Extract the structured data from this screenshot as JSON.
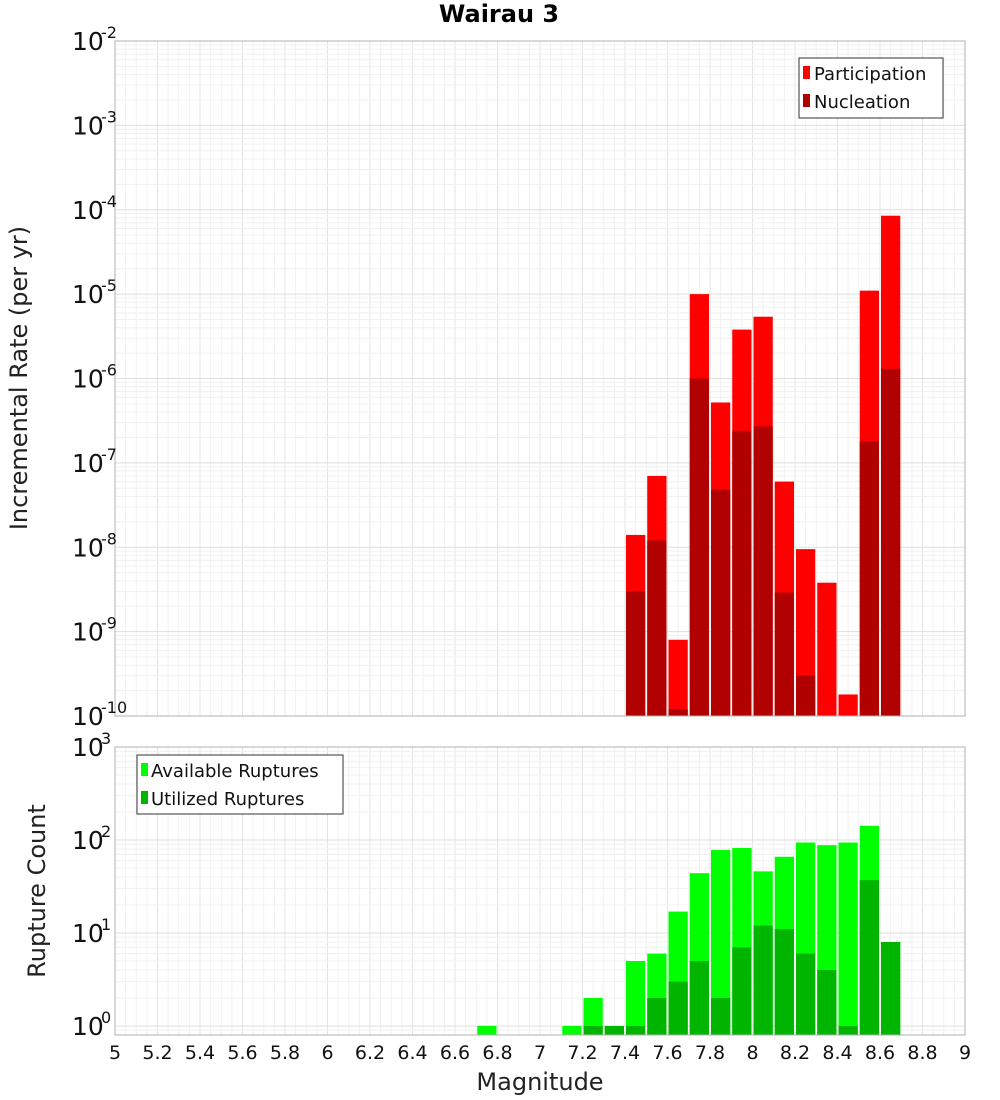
{
  "chart_data": [
    {
      "type": "bar",
      "title": "Wairau 3",
      "xlabel": "Magnitude",
      "ylabel": "Incremental Rate (per yr)",
      "yscale": "log",
      "xlim": [
        5,
        9
      ],
      "ylim": [
        1e-10,
        0.01
      ],
      "ytick_exponents": [
        -2,
        -3,
        -4,
        -5,
        -6,
        -7,
        -8,
        -9,
        -10
      ],
      "grid": true,
      "legend_position": "top-right",
      "bar_width": 0.1,
      "series": [
        {
          "name": "Participation",
          "color": "#ff0000",
          "x": [
            7.45,
            7.55,
            7.65,
            7.75,
            7.85,
            7.95,
            8.05,
            8.15,
            8.25,
            8.35,
            8.45,
            8.55,
            8.65
          ],
          "values": [
            1.4e-08,
            7e-08,
            8e-10,
            1e-05,
            5.2e-07,
            3.8e-06,
            5.4e-06,
            6e-08,
            9.5e-09,
            3.8e-09,
            1.8e-10,
            1.1e-05,
            8.5e-05
          ]
        },
        {
          "name": "Nucleation",
          "color": "#b00000",
          "x": [
            7.45,
            7.55,
            7.65,
            7.75,
            7.85,
            7.95,
            8.05,
            8.15,
            8.25,
            8.35,
            8.55,
            8.65
          ],
          "values": [
            3e-09,
            1.2e-08,
            1.2e-10,
            1e-06,
            4.8e-08,
            2.4e-07,
            2.7e-07,
            2.9e-09,
            3e-10,
            1e-10,
            1.8e-07,
            1.3e-06
          ]
        }
      ]
    },
    {
      "type": "bar",
      "xlabel": "Magnitude",
      "ylabel": "Rupture Count",
      "yscale": "log",
      "xlim": [
        5,
        9
      ],
      "ylim": [
        0.8,
        1000
      ],
      "ytick_exponents": [
        3,
        2,
        1,
        0
      ],
      "xticks": [
        "5",
        "5.2",
        "5.4",
        "5.6",
        "5.8",
        "6",
        "6.2",
        "6.4",
        "6.6",
        "6.8",
        "7",
        "7.2",
        "7.4",
        "7.6",
        "7.8",
        "8",
        "8.2",
        "8.4",
        "8.6",
        "8.8",
        "9"
      ],
      "grid": true,
      "legend_position": "top-left",
      "bar_width": 0.1,
      "series": [
        {
          "name": "Available Ruptures",
          "color": "#00ff00",
          "x": [
            6.75,
            7.15,
            7.25,
            7.35,
            7.45,
            7.55,
            7.65,
            7.75,
            7.85,
            7.95,
            8.05,
            8.15,
            8.25,
            8.35,
            8.45,
            8.55,
            8.65
          ],
          "values": [
            1,
            1,
            2,
            1,
            5,
            6,
            17,
            44,
            78,
            82,
            46,
            66,
            94,
            88,
            94,
            142,
            8
          ]
        },
        {
          "name": "Utilized Ruptures",
          "color": "#00b400",
          "x": [
            7.25,
            7.35,
            7.45,
            7.55,
            7.65,
            7.75,
            7.85,
            7.95,
            8.05,
            8.15,
            8.25,
            8.35,
            8.45,
            8.55,
            8.65
          ],
          "values": [
            1,
            1,
            1,
            2,
            3,
            5,
            2,
            7,
            12,
            11,
            6,
            4,
            1,
            37,
            8
          ]
        }
      ]
    }
  ]
}
